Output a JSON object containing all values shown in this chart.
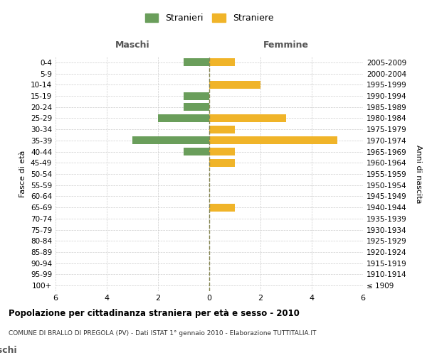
{
  "age_groups": [
    "100+",
    "95-99",
    "90-94",
    "85-89",
    "80-84",
    "75-79",
    "70-74",
    "65-69",
    "60-64",
    "55-59",
    "50-54",
    "45-49",
    "40-44",
    "35-39",
    "30-34",
    "25-29",
    "20-24",
    "15-19",
    "10-14",
    "5-9",
    "0-4"
  ],
  "birth_years": [
    "≤ 1909",
    "1910-1914",
    "1915-1919",
    "1920-1924",
    "1925-1929",
    "1930-1934",
    "1935-1939",
    "1940-1944",
    "1945-1949",
    "1950-1954",
    "1955-1959",
    "1960-1964",
    "1965-1969",
    "1970-1974",
    "1975-1979",
    "1980-1984",
    "1985-1989",
    "1990-1994",
    "1995-1999",
    "2000-2004",
    "2005-2009"
  ],
  "maschi": [
    0,
    0,
    0,
    0,
    0,
    0,
    0,
    0,
    0,
    0,
    0,
    0,
    1,
    3,
    0,
    2,
    1,
    1,
    0,
    0,
    1
  ],
  "femmine": [
    0,
    0,
    0,
    0,
    0,
    0,
    0,
    1,
    0,
    0,
    0,
    1,
    1,
    5,
    1,
    3,
    0,
    0,
    2,
    0,
    1
  ],
  "maschi_color": "#6a9e5b",
  "femmine_color": "#f0b429",
  "bg_color": "#ffffff",
  "grid_color": "#cccccc",
  "dashed_line_color": "#888855",
  "title": "Popolazione per cittadinanza straniera per età e sesso - 2010",
  "subtitle": "COMUNE DI BRALLO DI PREGOLA (PV) - Dati ISTAT 1° gennaio 2010 - Elaborazione TUTTITALIA.IT",
  "ylabel_left": "Fasce di età",
  "ylabel_right": "Anni di nascita",
  "xlabel_maschi": "Maschi",
  "xlabel_femmine": "Femmine",
  "legend_maschi": "Stranieri",
  "legend_femmine": "Straniere",
  "xlim": 6,
  "bar_height": 0.7
}
